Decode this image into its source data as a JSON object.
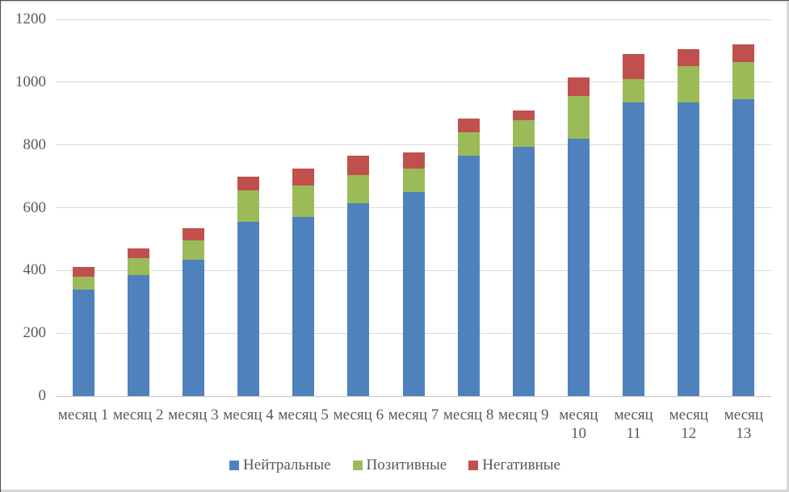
{
  "chart_data": {
    "type": "bar",
    "stacked": true,
    "title": "",
    "xlabel": "",
    "ylabel": "",
    "categories": [
      "месяц 1",
      "месяц 2",
      "месяц 3",
      "месяц 4",
      "месяц 5",
      "месяц 6",
      "месяц 7",
      "месяц 8",
      "месяц 9",
      "месяц 10",
      "месяц 11",
      "месяц 12",
      "месяц 13"
    ],
    "series": [
      {
        "key": "neutral",
        "name": "Нейтральные",
        "color": "#4F81BD",
        "values": [
          340,
          385,
          435,
          555,
          570,
          615,
          650,
          765,
          795,
          820,
          935,
          935,
          945
        ]
      },
      {
        "key": "positive",
        "name": "Позитивные",
        "color": "#9BBB59",
        "values": [
          40,
          55,
          60,
          100,
          100,
          90,
          75,
          75,
          85,
          135,
          75,
          115,
          120
        ]
      },
      {
        "key": "negative",
        "name": "Негативные",
        "color": "#C0504D",
        "values": [
          30,
          30,
          40,
          45,
          55,
          60,
          50,
          45,
          30,
          60,
          80,
          55,
          55
        ]
      }
    ],
    "ylim": [
      0,
      1200
    ],
    "yticks": [
      0,
      200,
      400,
      600,
      800,
      1000,
      1200
    ],
    "grid": true,
    "legend_position": "bottom",
    "wrap_labels_from_index": 9
  },
  "colors": {
    "grid": "#d9d9d9",
    "zero_axis": "#c3c3c3",
    "axis_text": "#595959",
    "background": "#ffffff",
    "frame_border": "#4a4a4a",
    "frame_shadow": "#d6d6d6"
  }
}
